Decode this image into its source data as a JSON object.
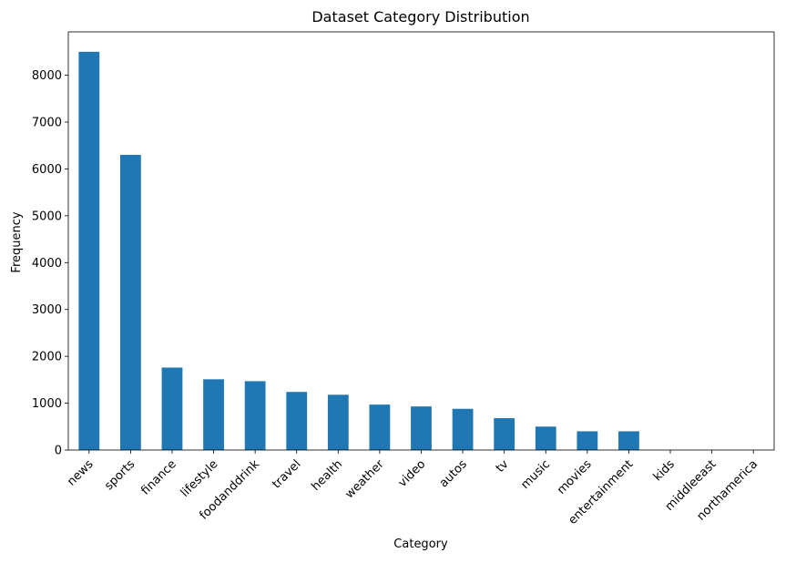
{
  "chart_data": {
    "type": "bar",
    "title": "Dataset Category Distribution",
    "xlabel": "Category",
    "ylabel": "Frequency",
    "categories": [
      "news",
      "sports",
      "finance",
      "lifestyle",
      "foodanddrink",
      "travel",
      "health",
      "weather",
      "video",
      "autos",
      "tv",
      "music",
      "movies",
      "entertainment",
      "kids",
      "middleeast",
      "northamerica"
    ],
    "values": [
      8500,
      6300,
      1760,
      1510,
      1470,
      1240,
      1180,
      970,
      930,
      880,
      680,
      500,
      400,
      400,
      1,
      1,
      1
    ],
    "ylim": [
      0,
      8925
    ],
    "yticks": [
      0,
      1000,
      2000,
      3000,
      4000,
      5000,
      6000,
      7000,
      8000
    ],
    "bar_color": "#1f77b4",
    "grid": false,
    "legend": "none"
  }
}
